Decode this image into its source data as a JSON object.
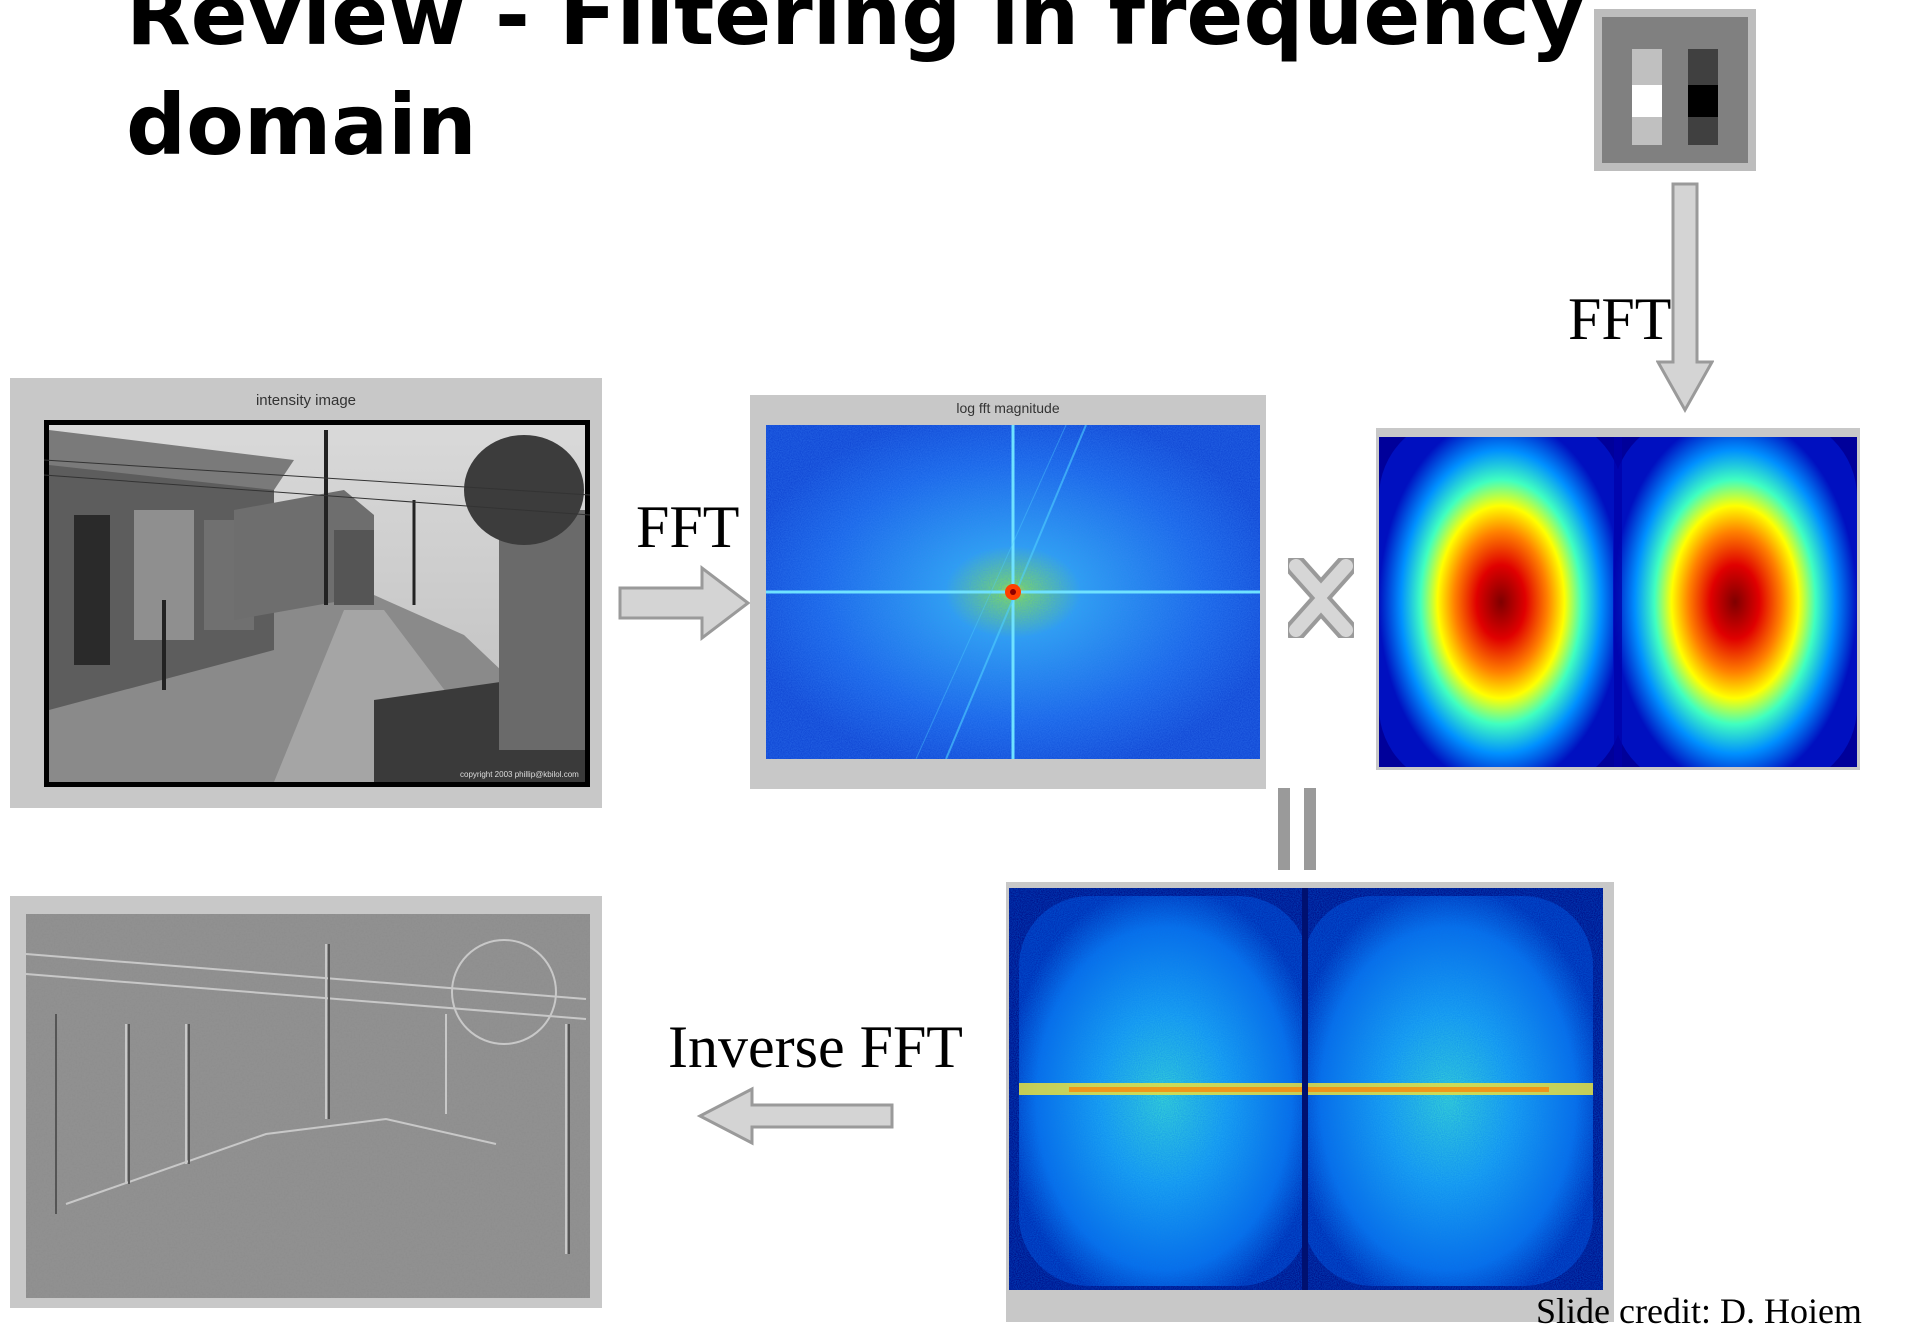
{
  "slide": {
    "title_line1": "Review - Filtering in frequency",
    "title_line2": "domain",
    "credit": "Slide credit: D. Hoiem"
  },
  "labels": {
    "fft_kernel": "FFT",
    "fft_image": "FFT",
    "inverse_fft": "Inverse FFT"
  },
  "figures": {
    "intensity_caption": "intensity image",
    "fft_caption": "log fft magnitude",
    "copyright": "copyright 2003 phillip@kbilol.com"
  },
  "symbols": {
    "multiply": "multiply-icon",
    "equals": "equals-icon",
    "arrow_color": "#c8c8c8"
  }
}
